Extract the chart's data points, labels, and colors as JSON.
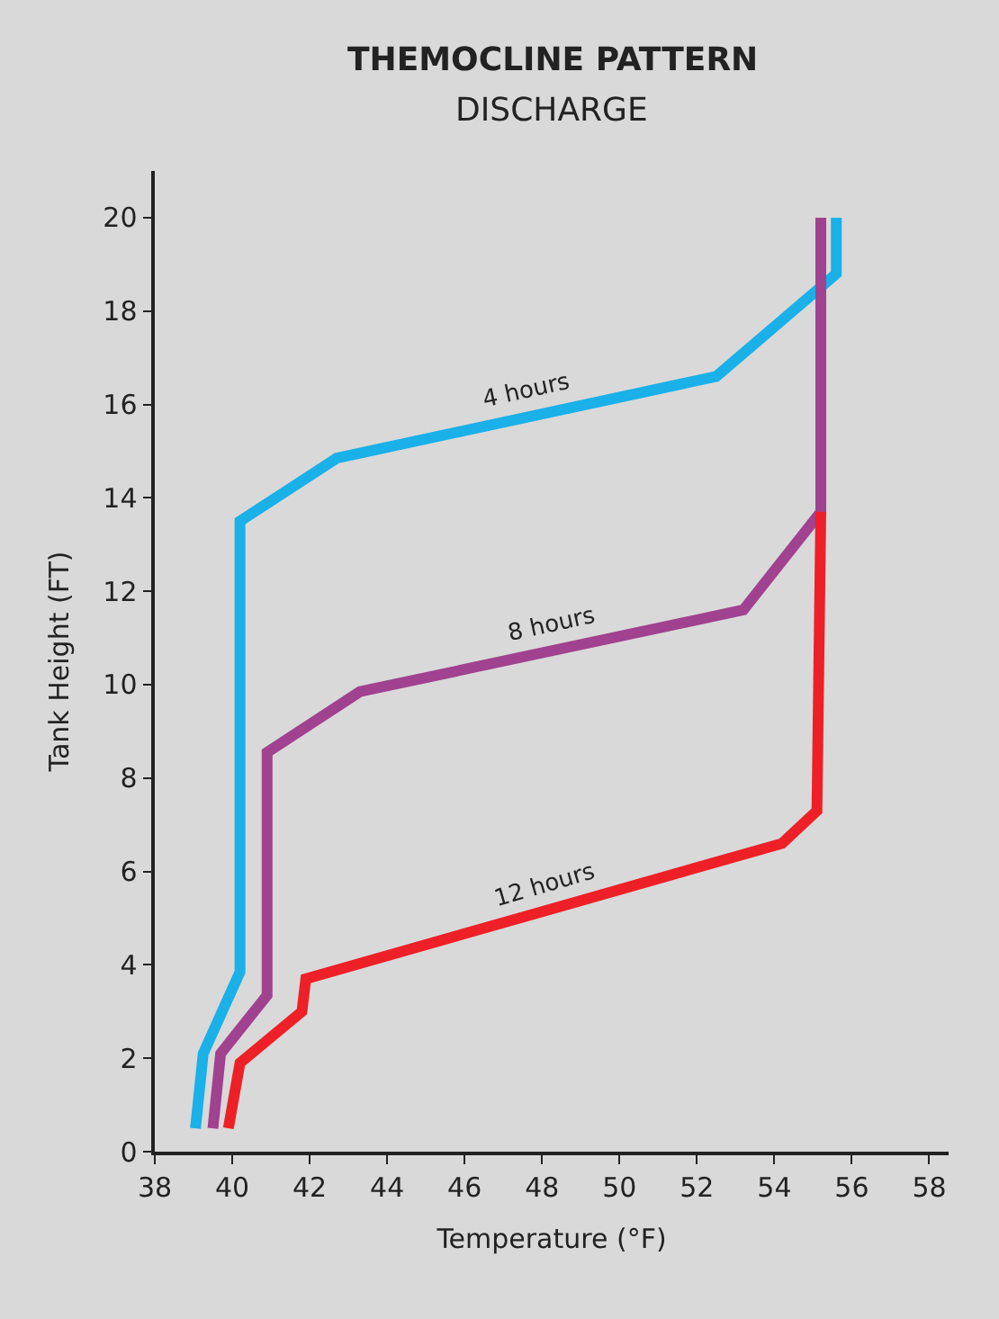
{
  "chart_data": {
    "type": "line",
    "title": "THEMOCLINE PATTERN",
    "subtitle": "DISCHARGE",
    "xlabel": "Temperature (°F)",
    "ylabel": "Tank Height (FT)",
    "xlim": [
      38,
      58.5
    ],
    "xticks": [
      38,
      40,
      42,
      44,
      46,
      48,
      50,
      52,
      54,
      56,
      58
    ],
    "ylim": [
      0,
      21
    ],
    "yticks": [
      0,
      2,
      4,
      6,
      8,
      10,
      12,
      14,
      16,
      18,
      20
    ],
    "grid": false,
    "legend": false,
    "marker": "none",
    "line_style": "solid",
    "series": [
      {
        "name": "4 hours",
        "color": "#1ab0e8",
        "x": [
          39.05,
          39.25,
          40.2,
          40.2,
          42.7,
          52.5,
          55.6,
          55.6
        ],
        "values": [
          0.5,
          2.1,
          3.85,
          13.5,
          14.85,
          16.6,
          18.8,
          20
        ]
      },
      {
        "name": "8 hours",
        "color": "#a0428f",
        "x": [
          39.5,
          39.7,
          40.9,
          40.9,
          43.3,
          53.2,
          55.2,
          55.2
        ],
        "values": [
          0.5,
          2.1,
          3.35,
          8.55,
          9.85,
          11.6,
          13.7,
          20
        ]
      },
      {
        "name": "12 hours",
        "color": "#ee2027",
        "x": [
          39.9,
          40.2,
          41.8,
          41.9,
          54.2,
          55.1,
          55.2
        ],
        "values": [
          0.5,
          1.9,
          3.0,
          3.7,
          6.6,
          7.3,
          13.7
        ]
      }
    ]
  }
}
